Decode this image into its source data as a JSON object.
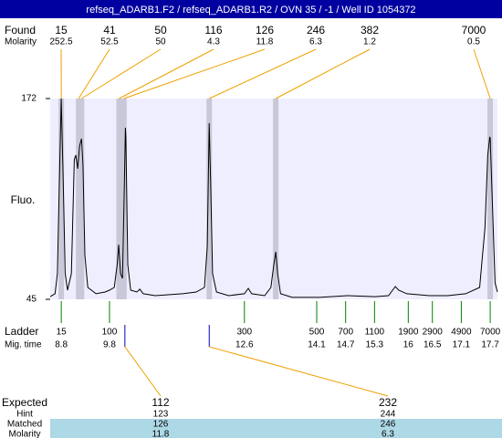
{
  "chart_data": {
    "type": "electropherogram",
    "title": "refseq_ADARB1.F2 / refseq_ADARB1.R2 / OVN 35 / -1 / Well ID 1054372",
    "y_label": "Fluo.",
    "ylim": [
      45,
      172
    ],
    "yticks": [
      45,
      172
    ],
    "xlim": [
      8.57,
      17.85
    ],
    "color": "#000000",
    "x": [
      8.57,
      8.67,
      8.72,
      8.76,
      8.8,
      8.84,
      8.88,
      8.93,
      9.01,
      9.07,
      9.1,
      9.14,
      9.18,
      9.22,
      9.25,
      9.29,
      9.35,
      9.52,
      9.71,
      9.8,
      9.9,
      9.96,
      9.99,
      10.03,
      10.07,
      10.11,
      10.13,
      10.14,
      10.18,
      10.24,
      10.37,
      10.43,
      10.5,
      10.75,
      11.32,
      11.6,
      11.77,
      11.83,
      11.87,
      11.9,
      11.94,
      12.02,
      12.27,
      12.6,
      12.68,
      12.75,
      13.02,
      13.15,
      13.21,
      13.25,
      13.29,
      13.35,
      13.59,
      14.16,
      14.74,
      15.31,
      15.59,
      15.73,
      15.8,
      15.97,
      16.44,
      16.82,
      17.19,
      17.48,
      17.59,
      17.65,
      17.69,
      17.7,
      17.75,
      17.8,
      17.85
    ],
    "values": [
      46.7,
      48.5,
      61.2,
      118.9,
      172,
      118.9,
      61.2,
      50.8,
      61.2,
      133.3,
      136.2,
      127.6,
      142,
      146.6,
      130.4,
      72.7,
      52.5,
      48.5,
      49.6,
      50.8,
      52.5,
      66.9,
      79.6,
      61.2,
      58.3,
      118.9,
      153.5,
      147.8,
      66.9,
      50.8,
      49.6,
      51.4,
      48.5,
      47.3,
      48.5,
      49.6,
      52.5,
      78.5,
      156.4,
      118.9,
      61.2,
      49.6,
      47.3,
      48.5,
      51.9,
      48.5,
      47.3,
      52.5,
      66.9,
      75,
      61.2,
      48.5,
      46.2,
      46.2,
      47.3,
      46.7,
      47.3,
      53.1,
      50.8,
      48.5,
      47.3,
      47.3,
      48.5,
      52.5,
      90,
      136.2,
      147.8,
      146.6,
      101.6,
      55.4,
      49.6
    ],
    "found": {
      "label": "Found",
      "molarity_label": "Molarity",
      "sizes": [
        15,
        41,
        50,
        116,
        126,
        246,
        382,
        7000
      ],
      "molarity": [
        252.5,
        52.5,
        50,
        4.3,
        11.8,
        6.3,
        1.2,
        0.5
      ],
      "mig_times": [
        8.8,
        9.16,
        9.22,
        10.0,
        10.1,
        11.87,
        13.25,
        17.7
      ]
    },
    "ladder": {
      "label": "Ladder",
      "mig_label": "Mig. time",
      "sizes": [
        15,
        100,
        300,
        500,
        700,
        1100,
        1900,
        2900,
        4900,
        7000
      ],
      "mig_times": [
        8.8,
        9.8,
        12.6,
        14.1,
        14.7,
        15.3,
        16,
        16.5,
        17.1,
        17.7
      ]
    },
    "expected": {
      "label": "Expected",
      "hint_label": "Hint",
      "matched_label": "Matched",
      "molarity_label": "Molarity",
      "sizes": [
        112,
        232
      ],
      "hint": [
        123,
        244
      ],
      "matched": [
        126,
        246
      ],
      "molarity": [
        11.8,
        6.3
      ],
      "mig_times": [
        10.12,
        11.87
      ]
    }
  }
}
